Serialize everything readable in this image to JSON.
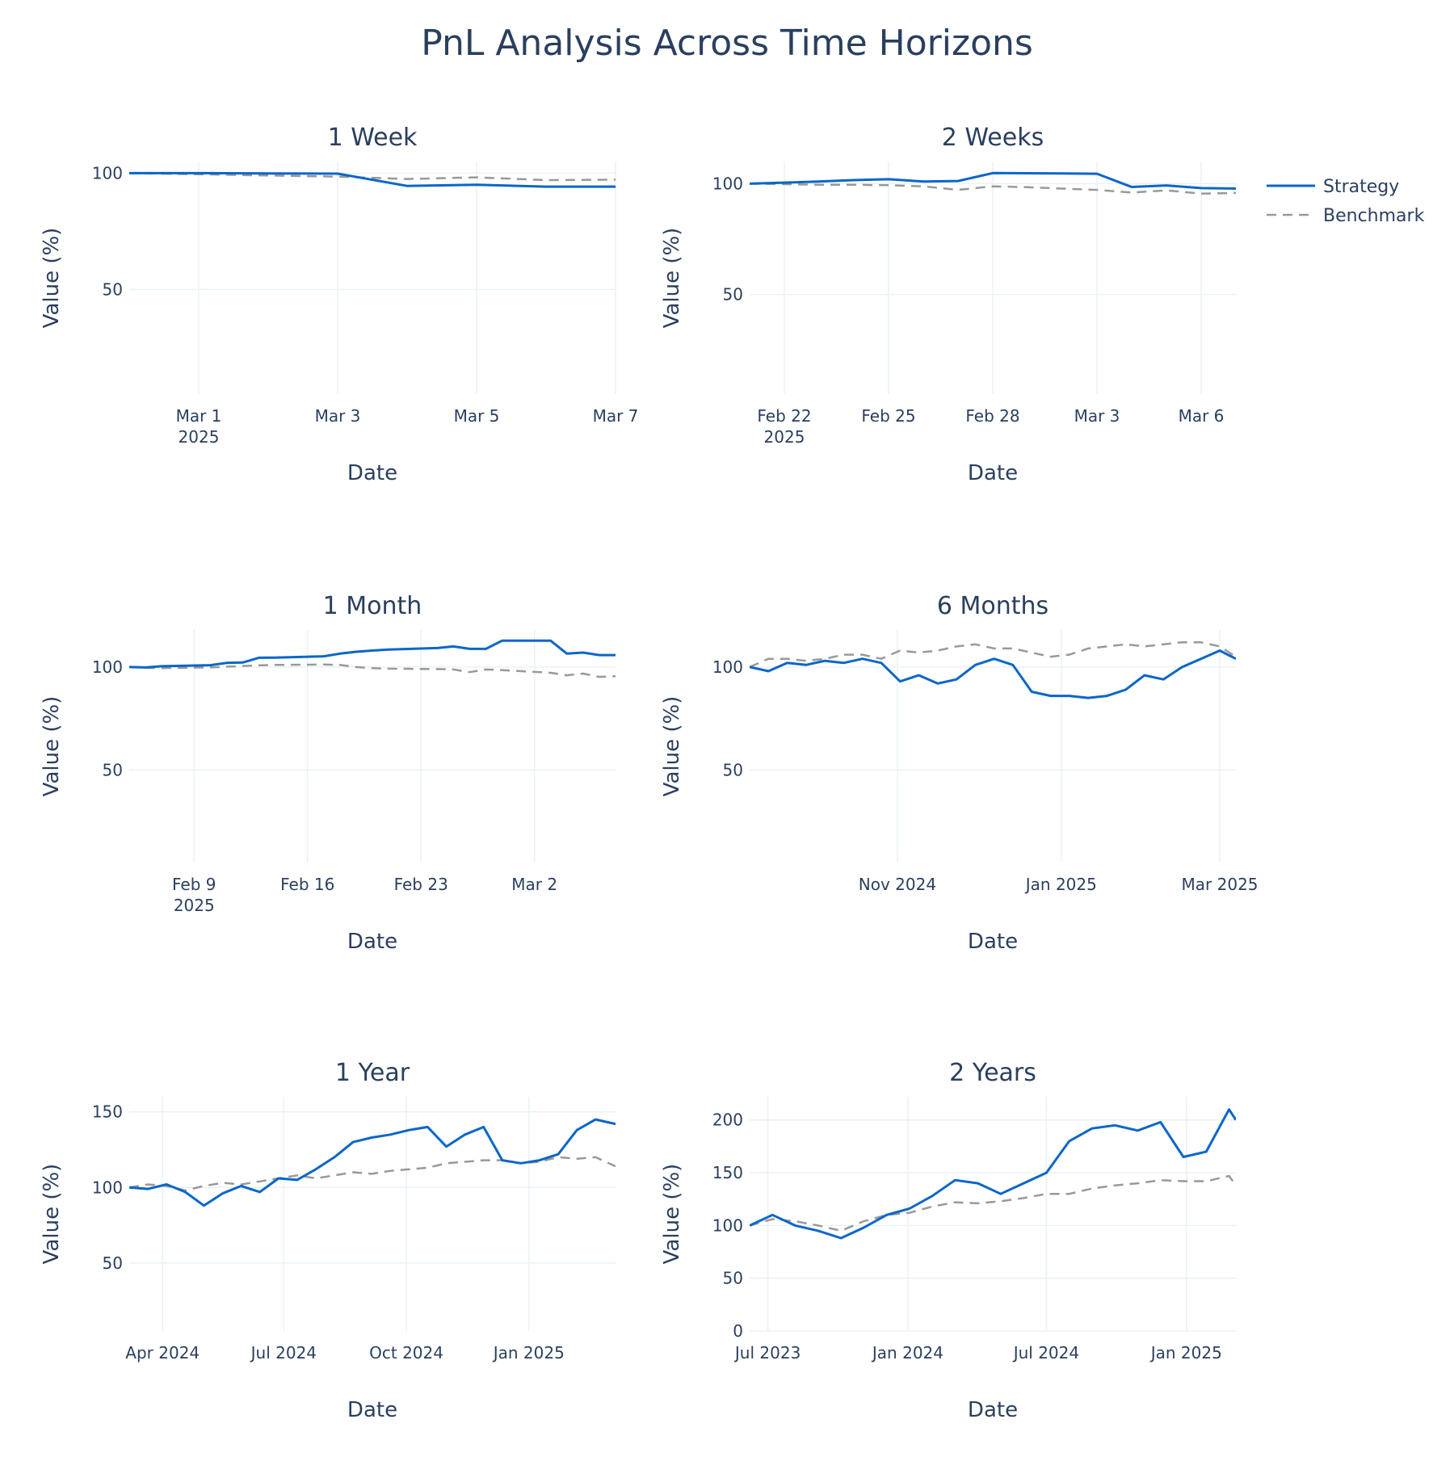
{
  "title": "PnL Analysis Across Time Horizons",
  "legend": [
    {
      "name": "Strategy",
      "color": "#0a66c9",
      "dash": "solid"
    },
    {
      "name": "Benchmark",
      "color": "#999999",
      "dash": "dash"
    }
  ],
  "chart_data": [
    {
      "type": "line",
      "title": "1 Week",
      "xlabel": "Date",
      "ylabel": "Value (%)",
      "x": [
        "2025-02-28",
        "2025-03-01",
        "2025-03-02",
        "2025-03-03",
        "2025-03-04",
        "2025-03-05",
        "2025-03-06",
        "2025-03-07"
      ],
      "xlim": [
        "2025-02-28",
        "2025-03-07"
      ],
      "ylim": [
        5,
        105
      ],
      "yticks": [
        50,
        100
      ],
      "xticks": [
        {
          "date": "2025-03-01",
          "label": "Mar 1",
          "sub": "2025"
        },
        {
          "date": "2025-03-03",
          "label": "Mar 3"
        },
        {
          "date": "2025-03-05",
          "label": "Mar 5"
        },
        {
          "date": "2025-03-07",
          "label": "Mar 7"
        }
      ],
      "series": [
        {
          "name": "Strategy",
          "values": [
            100.0,
            100.0,
            99.9,
            99.8,
            94.5,
            95.0,
            94.2,
            94.2
          ]
        },
        {
          "name": "Benchmark",
          "values": [
            100.0,
            99.5,
            99.0,
            98.5,
            97.5,
            98.2,
            97.0,
            97.2
          ]
        }
      ]
    },
    {
      "type": "line",
      "title": "2 Weeks",
      "xlabel": "Date",
      "ylabel": "Value (%)",
      "x": [
        "2025-02-21",
        "2025-02-22",
        "2025-02-23",
        "2025-02-24",
        "2025-02-25",
        "2025-02-26",
        "2025-02-27",
        "2025-02-28",
        "2025-03-01",
        "2025-03-02",
        "2025-03-03",
        "2025-03-04",
        "2025-03-05",
        "2025-03-06",
        "2025-03-07"
      ],
      "xlim": [
        "2025-02-21",
        "2025-03-07"
      ],
      "ylim": [
        5,
        110
      ],
      "yticks": [
        50,
        100
      ],
      "xticks": [
        {
          "date": "2025-02-22",
          "label": "Feb 22",
          "sub": "2025"
        },
        {
          "date": "2025-02-25",
          "label": "Feb 25"
        },
        {
          "date": "2025-02-28",
          "label": "Feb 28"
        },
        {
          "date": "2025-03-03",
          "label": "Mar 3"
        },
        {
          "date": "2025-03-06",
          "label": "Mar 6"
        }
      ],
      "series": [
        {
          "name": "Strategy",
          "values": [
            100.0,
            100.5,
            101.0,
            101.6,
            102.0,
            101.0,
            101.2,
            104.8,
            104.7,
            104.6,
            104.5,
            98.5,
            99.2,
            98.0,
            97.8
          ]
        },
        {
          "name": "Benchmark",
          "values": [
            100.0,
            99.8,
            99.5,
            99.5,
            99.3,
            98.8,
            97.2,
            98.8,
            98.4,
            97.8,
            97.2,
            96.0,
            97.0,
            95.5,
            95.8
          ]
        }
      ]
    },
    {
      "type": "line",
      "title": "1 Month",
      "xlabel": "Date",
      "ylabel": "Value (%)",
      "x": [
        "2025-02-05",
        "2025-02-06",
        "2025-02-07",
        "2025-02-10",
        "2025-02-11",
        "2025-02-12",
        "2025-02-13",
        "2025-02-14",
        "2025-02-17",
        "2025-02-18",
        "2025-02-19",
        "2025-02-20",
        "2025-02-21",
        "2025-02-24",
        "2025-02-25",
        "2025-02-26",
        "2025-02-27",
        "2025-02-28",
        "2025-03-03",
        "2025-03-04",
        "2025-03-05",
        "2025-03-06",
        "2025-03-07"
      ],
      "xlim": [
        "2025-02-05",
        "2025-03-07"
      ],
      "ylim": [
        5,
        118
      ],
      "yticks": [
        50,
        100
      ],
      "xticks": [
        {
          "date": "2025-02-09",
          "label": "Feb 9",
          "sub": "2025"
        },
        {
          "date": "2025-02-16",
          "label": "Feb 16"
        },
        {
          "date": "2025-02-23",
          "label": "Feb 23"
        },
        {
          "date": "2025-03-02",
          "label": "Mar 2"
        }
      ],
      "series": [
        {
          "name": "Strategy",
          "values": [
            100.0,
            99.8,
            100.4,
            100.9,
            102.0,
            102.2,
            104.5,
            104.6,
            105.2,
            106.5,
            107.4,
            108.0,
            108.5,
            109.2,
            110.0,
            108.8,
            108.8,
            112.8,
            112.8,
            106.5,
            107.0,
            105.8,
            105.8
          ]
        },
        {
          "name": "Benchmark",
          "values": [
            100.0,
            99.6,
            99.5,
            99.8,
            100.2,
            100.5,
            100.8,
            101.0,
            101.2,
            101.0,
            100.0,
            99.5,
            99.2,
            99.0,
            98.8,
            97.5,
            98.8,
            98.5,
            97.2,
            96.0,
            96.8,
            95.2,
            95.5
          ]
        }
      ]
    },
    {
      "type": "line",
      "title": "6 Months",
      "xlabel": "Date",
      "ylabel": "Value (%)",
      "x": [
        "2024-09-07",
        "2024-09-14",
        "2024-09-21",
        "2024-09-28",
        "2024-10-05",
        "2024-10-12",
        "2024-10-19",
        "2024-10-26",
        "2024-11-02",
        "2024-11-09",
        "2024-11-16",
        "2024-11-23",
        "2024-11-30",
        "2024-12-07",
        "2024-12-14",
        "2024-12-21",
        "2024-12-28",
        "2025-01-04",
        "2025-01-11",
        "2025-01-18",
        "2025-01-25",
        "2025-02-01",
        "2025-02-08",
        "2025-02-15",
        "2025-02-22",
        "2025-03-01",
        "2025-03-07"
      ],
      "xlim": [
        "2024-09-07",
        "2025-03-07"
      ],
      "ylim": [
        5,
        118
      ],
      "yticks": [
        50,
        100
      ],
      "xticks": [
        {
          "date": "2024-11-01",
          "label": "Nov 2024"
        },
        {
          "date": "2025-01-01",
          "label": "Jan 2025"
        },
        {
          "date": "2025-03-01",
          "label": "Mar 2025"
        }
      ],
      "series": [
        {
          "name": "Strategy",
          "values": [
            100,
            98,
            102,
            101,
            103,
            102,
            104,
            102,
            93,
            96,
            92,
            94,
            101,
            104,
            101,
            88,
            86,
            86,
            85,
            86,
            89,
            96,
            94,
            100,
            104,
            108,
            104
          ]
        },
        {
          "name": "Benchmark",
          "values": [
            100,
            104,
            104,
            103,
            104,
            106,
            106,
            104,
            108,
            107,
            108,
            110,
            111,
            109,
            109,
            107,
            105,
            106,
            109,
            110,
            111,
            110,
            111,
            112,
            112,
            110,
            105
          ]
        }
      ]
    },
    {
      "type": "line",
      "title": "1 Year",
      "xlabel": "Date",
      "ylabel": "Value (%)",
      "x": [
        "2024-03-07",
        "2024-03-21",
        "2024-04-04",
        "2024-04-18",
        "2024-05-02",
        "2024-05-16",
        "2024-05-30",
        "2024-06-13",
        "2024-06-27",
        "2024-07-11",
        "2024-07-25",
        "2024-08-08",
        "2024-08-22",
        "2024-09-05",
        "2024-09-19",
        "2024-10-03",
        "2024-10-17",
        "2024-10-31",
        "2024-11-14",
        "2024-11-28",
        "2024-12-12",
        "2024-12-26",
        "2025-01-09",
        "2025-01-23",
        "2025-02-06",
        "2025-02-20",
        "2025-03-07"
      ],
      "xlim": [
        "2024-03-07",
        "2025-03-07"
      ],
      "ylim": [
        5,
        160
      ],
      "yticks": [
        50,
        100,
        150
      ],
      "xticks": [
        {
          "date": "2024-04-01",
          "label": "Apr 2024"
        },
        {
          "date": "2024-07-01",
          "label": "Jul 2024"
        },
        {
          "date": "2024-10-01",
          "label": "Oct 2024"
        },
        {
          "date": "2025-01-01",
          "label": "Jan 2025"
        }
      ],
      "series": [
        {
          "name": "Strategy",
          "values": [
            100,
            99,
            102,
            97,
            88,
            96,
            101,
            97,
            106,
            105,
            112,
            120,
            130,
            133,
            135,
            138,
            140,
            127,
            135,
            140,
            118,
            116,
            118,
            122,
            138,
            145,
            142
          ]
        },
        {
          "name": "Benchmark",
          "values": [
            100,
            102,
            101,
            98,
            101,
            103,
            102,
            104,
            106,
            108,
            106,
            108,
            110,
            109,
            111,
            112,
            113,
            116,
            117,
            118,
            118,
            116,
            117,
            120,
            119,
            120,
            114
          ]
        }
      ]
    },
    {
      "type": "line",
      "title": "2 Years",
      "xlabel": "Date",
      "ylabel": "Value (%)",
      "x": [
        "2023-06-07",
        "2023-07-07",
        "2023-08-06",
        "2023-09-05",
        "2023-10-05",
        "2023-11-04",
        "2023-12-04",
        "2024-01-03",
        "2024-02-02",
        "2024-03-03",
        "2024-04-02",
        "2024-05-02",
        "2024-06-01",
        "2024-07-01",
        "2024-07-31",
        "2024-08-30",
        "2024-09-29",
        "2024-10-29",
        "2024-11-28",
        "2024-12-28",
        "2025-01-27",
        "2025-02-26",
        "2025-03-07"
      ],
      "xlim": [
        "2023-06-07",
        "2025-03-07"
      ],
      "ylim": [
        0,
        222
      ],
      "yticks": [
        0,
        50,
        100,
        150,
        200
      ],
      "xticks": [
        {
          "date": "2023-07-01",
          "label": "Jul 2023"
        },
        {
          "date": "2024-01-01",
          "label": "Jan 2024"
        },
        {
          "date": "2024-07-01",
          "label": "Jul 2024"
        },
        {
          "date": "2025-01-01",
          "label": "Jan 2025"
        }
      ],
      "series": [
        {
          "name": "Strategy",
          "values": [
            100,
            110,
            100,
            95,
            88,
            98,
            110,
            116,
            128,
            143,
            140,
            130,
            140,
            150,
            180,
            192,
            195,
            190,
            198,
            165,
            170,
            210,
            200
          ]
        },
        {
          "name": "Benchmark",
          "values": [
            100,
            106,
            104,
            100,
            95,
            104,
            110,
            112,
            118,
            122,
            121,
            123,
            126,
            130,
            130,
            135,
            138,
            140,
            143,
            142,
            142,
            147,
            138
          ]
        }
      ]
    }
  ]
}
